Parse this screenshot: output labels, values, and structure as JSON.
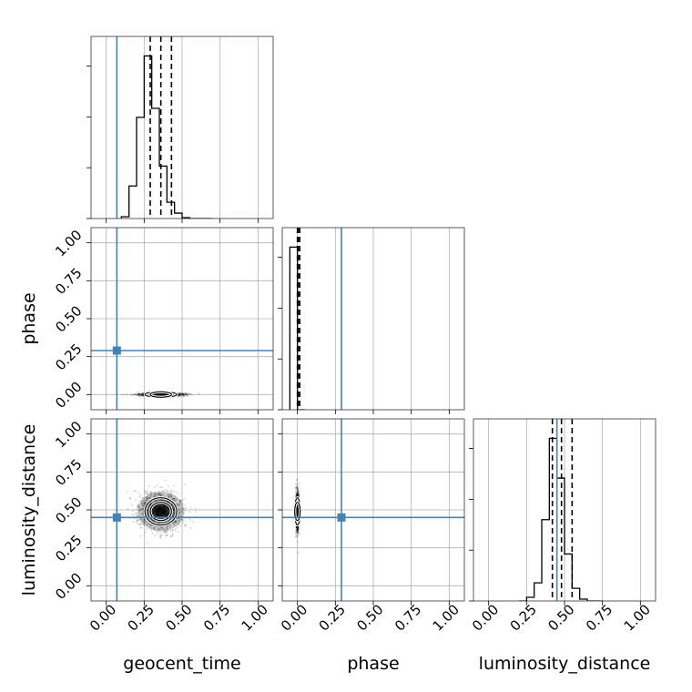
{
  "chart_data": {
    "type": "corner",
    "parameters": [
      "geocent_time",
      "phase",
      "luminosity_distance"
    ],
    "axis_range": [
      -0.1,
      1.1
    ],
    "tick_labels": [
      "0.00",
      "0.25",
      "0.50",
      "0.75",
      "1.00"
    ],
    "tick_values": [
      0.0,
      0.25,
      0.5,
      0.75,
      1.0
    ],
    "grid": true,
    "truth_color": "#4682b4",
    "truths": {
      "geocent_time": 0.07,
      "phase": 0.29,
      "luminosity_distance": 0.45
    },
    "marginals": {
      "geocent_time": {
        "bin_edges": [
          0.1,
          0.15,
          0.2,
          0.25,
          0.3,
          0.35,
          0.4,
          0.45,
          0.5,
          0.55,
          0.6,
          0.65,
          0.7
        ],
        "counts": [
          0.01,
          0.18,
          0.56,
          0.9,
          0.61,
          0.29,
          0.09,
          0.03,
          0.005,
          0,
          0,
          0
        ],
        "quantiles": [
          0.29,
          0.36,
          0.43
        ]
      },
      "phase": {
        "bin_edges": [
          -0.05,
          0.0,
          0.05
        ],
        "counts": [
          1.0,
          0.0
        ],
        "quantiles": [
          0.0,
          0.005,
          0.015
        ]
      },
      "luminosity_distance": {
        "bin_edges": [
          0.2,
          0.25,
          0.3,
          0.35,
          0.4,
          0.45,
          0.5,
          0.55,
          0.6,
          0.65,
          0.7,
          0.75
        ],
        "counts": [
          0.0,
          0.02,
          0.1,
          0.45,
          0.9,
          0.68,
          0.26,
          0.07,
          0.01,
          0.0,
          0.0
        ],
        "quantiles": [
          0.42,
          0.48,
          0.55
        ]
      }
    },
    "joint": [
      {
        "x": "geocent_time",
        "y": "phase",
        "center": [
          0.36,
          0.0
        ],
        "sigma": [
          0.07,
          0.005
        ]
      },
      {
        "x": "geocent_time",
        "y": "luminosity_distance",
        "center": [
          0.36,
          0.49
        ],
        "sigma": [
          0.07,
          0.06
        ]
      },
      {
        "x": "phase",
        "y": "luminosity_distance",
        "center": [
          0.0,
          0.49
        ],
        "sigma": [
          0.005,
          0.06
        ]
      }
    ]
  }
}
